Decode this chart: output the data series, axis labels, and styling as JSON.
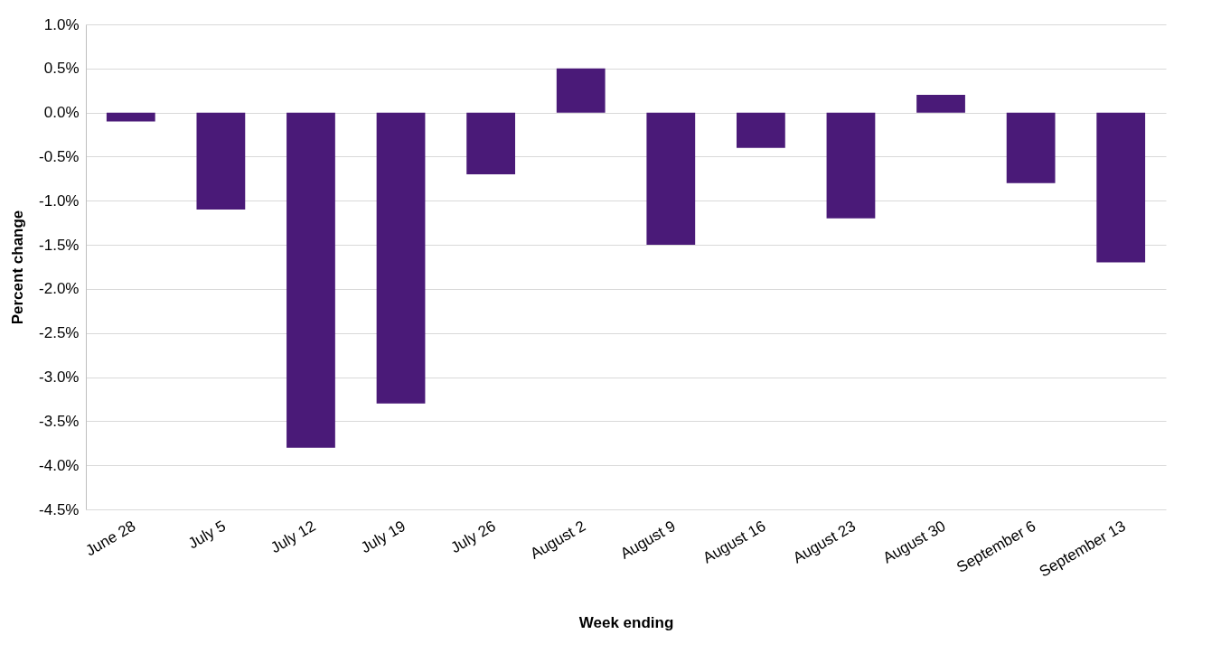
{
  "chart_data": {
    "type": "bar",
    "xlabel": "Week ending",
    "ylabel": "Percent change",
    "categories": [
      "June 28",
      "July 5",
      "July 12",
      "July 19",
      "July 26",
      "August 2",
      "August 9",
      "August 16",
      "August 23",
      "August 30",
      "September 6",
      "September 13"
    ],
    "values": [
      -0.1,
      -1.1,
      -3.8,
      -3.3,
      -0.7,
      0.5,
      -1.5,
      -0.4,
      -1.2,
      0.2,
      -0.8,
      -1.7
    ],
    "color": "#4a1a78",
    "ylim": [
      -4.5,
      1.0
    ],
    "yticks": [
      {
        "value": 1.0,
        "label": "1.0%"
      },
      {
        "value": 0.5,
        "label": "0.5%"
      },
      {
        "value": 0,
        "label": "0.0%"
      },
      {
        "value": -0.5,
        "label": "-0.5%"
      },
      {
        "value": -1.0,
        "label": "-1.0%"
      },
      {
        "value": -1.5,
        "label": "-1.5%"
      },
      {
        "value": -2.0,
        "label": "-2.0%"
      },
      {
        "value": -2.5,
        "label": "-2.5%"
      },
      {
        "value": -3.0,
        "label": "-3.0%"
      },
      {
        "value": -3.5,
        "label": "-3.5%"
      },
      {
        "value": -4.0,
        "label": "-4.0%"
      },
      {
        "value": -4.5,
        "label": "-4.5%"
      }
    ],
    "grid": "y"
  }
}
